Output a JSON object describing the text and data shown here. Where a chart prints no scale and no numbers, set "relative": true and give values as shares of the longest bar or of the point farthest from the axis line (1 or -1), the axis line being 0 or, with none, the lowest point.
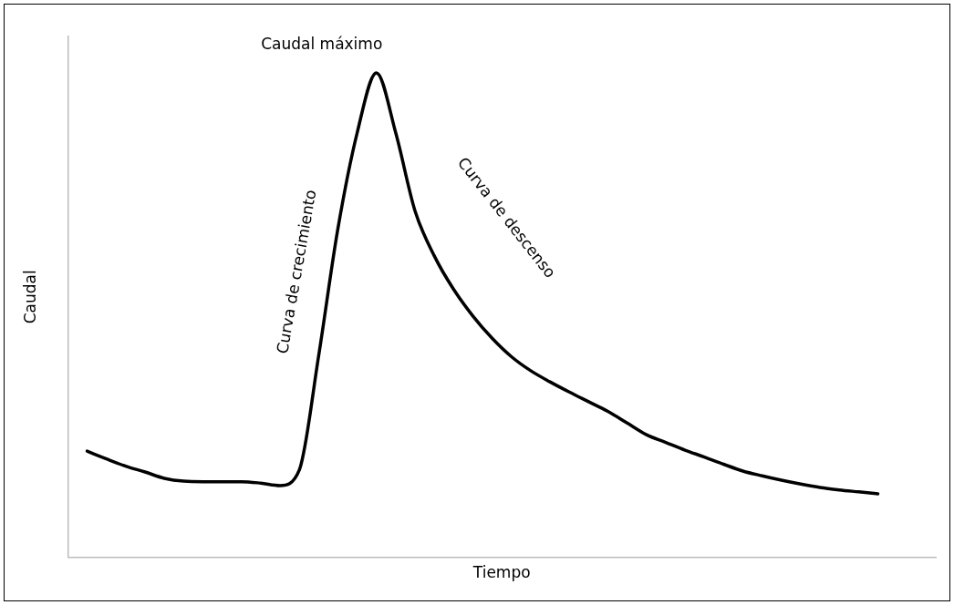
{
  "chart_data": {
    "type": "line",
    "relative": true,
    "xlabel": "Tiempo",
    "ylabel": "Caudal",
    "color": "#000000",
    "marker": "none",
    "line_style": "solid",
    "legend": false,
    "grid": false,
    "tick_labels": false,
    "annotations": [
      "Caudal máximo",
      "Curva de crecimiento",
      "Curva de descenso"
    ],
    "categories": [
      null,
      null,
      null,
      null,
      null,
      null,
      null,
      null,
      null,
      null,
      null,
      null,
      null,
      null,
      null,
      null,
      null,
      null,
      null,
      null,
      null,
      null,
      null,
      null,
      null,
      null,
      null,
      null,
      null,
      null,
      null,
      null,
      null,
      null,
      null,
      null,
      null,
      null,
      null,
      null,
      null,
      null,
      null,
      null,
      null,
      null
    ],
    "values": [
      null,
      0.219,
      0.203,
      0.188,
      0.176,
      0.163,
      0.157,
      0.156,
      0.156,
      0.156,
      0.153,
      0.148,
      0.18,
      0.415,
      0.678,
      0.876,
      1.0,
      0.876,
      0.715,
      0.622,
      0.553,
      0.498,
      0.452,
      0.414,
      0.385,
      0.362,
      0.341,
      0.321,
      0.301,
      0.277,
      0.253,
      0.237,
      0.221,
      0.207,
      0.192,
      0.178,
      0.168,
      0.159,
      0.151,
      0.144,
      0.139,
      0.135,
      0.131,
      null,
      null,
      null
    ]
  }
}
